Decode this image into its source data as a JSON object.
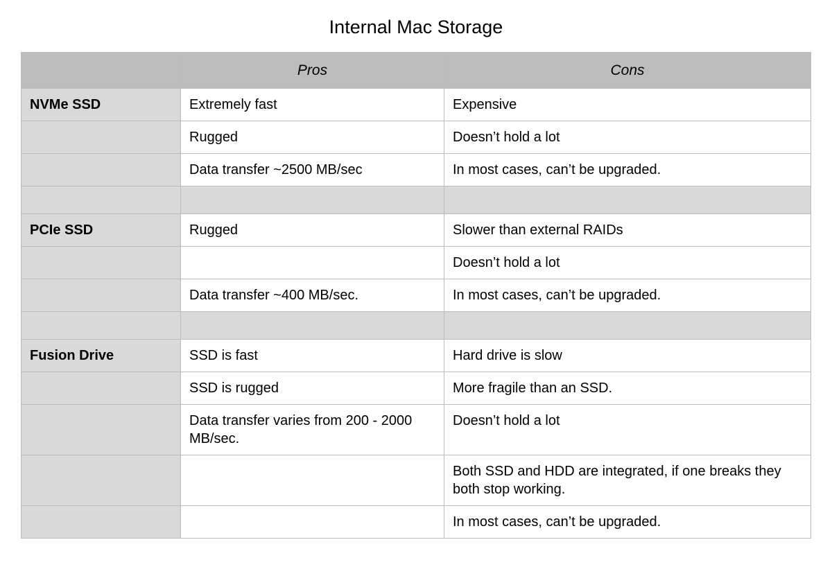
{
  "title": "Internal Mac Storage",
  "columns": {
    "label": "",
    "pros": "Pros",
    "cons": "Cons"
  },
  "col_widths": {
    "label": 230,
    "pros": 380
  },
  "fonts": {
    "title_size": 27,
    "header_size": 21,
    "cell_size": 20
  },
  "colors": {
    "header_bg": "#bdbdbd",
    "label_bg": "#d9d9d9",
    "spacer_bg": "#d9d9d9",
    "border": "#bcbcbc",
    "text": "#000000",
    "background": "#ffffff"
  },
  "rows": [
    {
      "type": "data",
      "label": "NVMe SSD",
      "pros": "Extremely fast",
      "cons": "Expensive"
    },
    {
      "type": "data",
      "label": "",
      "pros": "Rugged",
      "cons": "Doesn’t hold a lot"
    },
    {
      "type": "data",
      "label": "",
      "pros": "Data transfer ~2500 MB/sec",
      "cons": "In most cases, can’t be upgraded."
    },
    {
      "type": "spacer"
    },
    {
      "type": "data",
      "label": "PCIe SSD",
      "pros": "Rugged",
      "cons": "Slower than external RAIDs"
    },
    {
      "type": "data",
      "label": "",
      "pros": "",
      "cons": "Doesn’t hold a lot"
    },
    {
      "type": "data",
      "label": "",
      "pros": "Data transfer ~400 MB/sec.",
      "cons": "In most cases, can’t be upgraded."
    },
    {
      "type": "spacer"
    },
    {
      "type": "data",
      "label": "Fusion Drive",
      "pros": "SSD is fast",
      "cons": "Hard drive is slow"
    },
    {
      "type": "data",
      "label": "",
      "pros": "SSD is rugged",
      "cons": "More fragile than an SSD."
    },
    {
      "type": "data",
      "label": "",
      "pros": "Data transfer varies from 200 - 2000 MB/sec.",
      "cons": "Doesn’t hold a lot"
    },
    {
      "type": "data",
      "label": "",
      "pros": "",
      "cons": "Both SSD and HDD are integrated, if one breaks they both stop working."
    },
    {
      "type": "data",
      "label": "",
      "pros": "",
      "cons": "In most cases, can’t be upgraded."
    }
  ]
}
